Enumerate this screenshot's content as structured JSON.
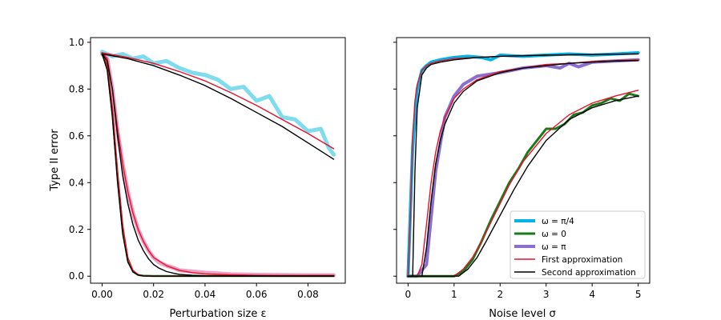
{
  "chart_data": [
    {
      "type": "line",
      "xlabel": "Perturbation size ε",
      "ylabel": "Type II error",
      "xlim": [
        -0.0045,
        0.0945
      ],
      "ylim": [
        -0.03,
        1.02
      ],
      "xticks": [
        0.0,
        0.02,
        0.04,
        0.06,
        0.08
      ],
      "xtick_labels": [
        "0.00",
        "0.02",
        "0.04",
        "0.06",
        "0.08"
      ],
      "yticks": [
        0.0,
        0.2,
        0.4,
        0.6,
        0.8,
        1.0
      ],
      "ytick_labels": [
        "0.0",
        "0.2",
        "0.4",
        "0.6",
        "0.8",
        "1.0"
      ],
      "grid": false,
      "series": [
        {
          "color": "#5ed3e8",
          "width": 5,
          "opacity": 0.8,
          "x": [
            0,
            0.004,
            0.008,
            0.012,
            0.016,
            0.02,
            0.025,
            0.03,
            0.035,
            0.04,
            0.045,
            0.05,
            0.055,
            0.06,
            0.065,
            0.07,
            0.075,
            0.08,
            0.085,
            0.088,
            0.09
          ],
          "y": [
            0.96,
            0.94,
            0.95,
            0.93,
            0.94,
            0.91,
            0.92,
            0.89,
            0.87,
            0.86,
            0.84,
            0.8,
            0.81,
            0.75,
            0.77,
            0.68,
            0.67,
            0.62,
            0.63,
            0.55,
            0.52
          ]
        },
        {
          "color": "#e060a0",
          "width": 5,
          "opacity": 0.6,
          "x": [
            0,
            0.002,
            0.004,
            0.006,
            0.008,
            0.01,
            0.012,
            0.014,
            0.016,
            0.018,
            0.02,
            0.022,
            0.025,
            0.028,
            0.03,
            0.035,
            0.04,
            0.045,
            0.05,
            0.06,
            0.07,
            0.08,
            0.09
          ],
          "y": [
            0.95,
            0.93,
            0.8,
            0.62,
            0.48,
            0.36,
            0.27,
            0.2,
            0.15,
            0.11,
            0.08,
            0.06,
            0.045,
            0.035,
            0.025,
            0.02,
            0.015,
            0.012,
            0.008,
            0.006,
            0.005,
            0.004,
            0.004
          ]
        },
        {
          "color": "#2e8b2e",
          "width": 2.5,
          "opacity": 1,
          "x": [
            0,
            0.002,
            0.004,
            0.006,
            0.008,
            0.01,
            0.012,
            0.014,
            0.016,
            0.02,
            0.03,
            0.05,
            0.07,
            0.09
          ],
          "y": [
            0.95,
            0.9,
            0.7,
            0.43,
            0.2,
            0.07,
            0.02,
            0.005,
            0.002,
            0.001,
            0.001,
            0.001,
            0.001,
            0.001
          ]
        },
        {
          "color": "#e8102a",
          "width": 1.4,
          "opacity": 1,
          "x": [
            0,
            0.01,
            0.02,
            0.03,
            0.04,
            0.05,
            0.06,
            0.07,
            0.08,
            0.09
          ],
          "y": [
            0.955,
            0.935,
            0.91,
            0.875,
            0.835,
            0.785,
            0.73,
            0.67,
            0.61,
            0.545
          ]
        },
        {
          "color": "#e8102a",
          "width": 1.4,
          "opacity": 1,
          "x": [
            0,
            0.002,
            0.004,
            0.006,
            0.008,
            0.01,
            0.012,
            0.014,
            0.016,
            0.018,
            0.02,
            0.025,
            0.03,
            0.035,
            0.04,
            0.05,
            0.06,
            0.07,
            0.08,
            0.09
          ],
          "y": [
            0.955,
            0.93,
            0.8,
            0.63,
            0.48,
            0.36,
            0.27,
            0.2,
            0.15,
            0.11,
            0.08,
            0.045,
            0.025,
            0.015,
            0.01,
            0.006,
            0.004,
            0.003,
            0.003,
            0.003
          ]
        },
        {
          "color": "#e8102a",
          "width": 1.4,
          "opacity": 1,
          "x": [
            0,
            0.002,
            0.004,
            0.006,
            0.008,
            0.01,
            0.012,
            0.014,
            0.016,
            0.02,
            0.03,
            0.05,
            0.09
          ],
          "y": [
            0.955,
            0.9,
            0.72,
            0.45,
            0.22,
            0.08,
            0.025,
            0.007,
            0.002,
            0.001,
            0.001,
            0.001,
            0.001
          ]
        },
        {
          "color": "#000000",
          "width": 1.4,
          "opacity": 1,
          "x": [
            0,
            0.01,
            0.02,
            0.03,
            0.04,
            0.05,
            0.06,
            0.07,
            0.08,
            0.09
          ],
          "y": [
            0.95,
            0.93,
            0.9,
            0.86,
            0.815,
            0.76,
            0.7,
            0.64,
            0.57,
            0.5
          ]
        },
        {
          "color": "#000000",
          "width": 1.4,
          "opacity": 1,
          "x": [
            0,
            0.002,
            0.004,
            0.006,
            0.008,
            0.01,
            0.012,
            0.014,
            0.016,
            0.018,
            0.02,
            0.022,
            0.025,
            0.028,
            0.03,
            0.035,
            0.04,
            0.05,
            0.06,
            0.07,
            0.09
          ],
          "y": [
            0.95,
            0.92,
            0.8,
            0.6,
            0.43,
            0.31,
            0.22,
            0.155,
            0.11,
            0.075,
            0.05,
            0.035,
            0.02,
            0.012,
            0.008,
            0.004,
            0.002,
            0.001,
            0.001,
            0.001,
            0.001
          ]
        },
        {
          "color": "#000000",
          "width": 1.4,
          "opacity": 1,
          "x": [
            0,
            0.002,
            0.004,
            0.006,
            0.008,
            0.01,
            0.012,
            0.014,
            0.016,
            0.02,
            0.03,
            0.09
          ],
          "y": [
            0.95,
            0.88,
            0.68,
            0.4,
            0.18,
            0.06,
            0.018,
            0.005,
            0.001,
            0.0,
            0.0,
            0.0
          ]
        }
      ]
    },
    {
      "type": "line",
      "xlabel": "Noise level σ",
      "ylabel": "",
      "xlim": [
        -0.25,
        5.25
      ],
      "ylim": [
        -0.03,
        1.02
      ],
      "xticks": [
        0,
        1,
        2,
        3,
        4,
        5
      ],
      "xtick_labels": [
        "0",
        "1",
        "2",
        "3",
        "4",
        "5"
      ],
      "yticks": [
        0.0,
        0.2,
        0.4,
        0.6,
        0.8,
        1.0
      ],
      "ytick_labels": [
        "",
        "",
        "",
        "",
        "",
        ""
      ],
      "grid": false,
      "series": [
        {
          "color": "#00b4e6",
          "width": 4,
          "opacity": 1,
          "x": [
            0,
            0.1,
            0.2,
            0.3,
            0.4,
            0.5,
            0.7,
            1.0,
            1.3,
            1.6,
            1.8,
            2.0,
            2.5,
            3.0,
            3.5,
            4.0,
            4.5,
            5.0
          ],
          "y": [
            0.0,
            0.55,
            0.8,
            0.88,
            0.9,
            0.915,
            0.925,
            0.935,
            0.94,
            0.935,
            0.925,
            0.945,
            0.94,
            0.945,
            0.95,
            0.945,
            0.95,
            0.955
          ]
        },
        {
          "color": "#8a6fd0",
          "width": 4,
          "opacity": 1,
          "x": [
            0,
            0.2,
            0.4,
            0.6,
            0.8,
            1.0,
            1.2,
            1.5,
            2.0,
            2.5,
            3.0,
            3.3,
            3.5,
            3.7,
            4.0,
            4.5,
            5.0
          ],
          "y": [
            0.0,
            0.0,
            0.05,
            0.45,
            0.68,
            0.77,
            0.82,
            0.855,
            0.87,
            0.89,
            0.9,
            0.89,
            0.91,
            0.895,
            0.915,
            0.92,
            0.925
          ]
        },
        {
          "color": "#1a7a1a",
          "width": 3,
          "opacity": 1,
          "x": [
            0,
            1.0,
            1.2,
            1.4,
            1.6,
            1.8,
            2.0,
            2.2,
            2.4,
            2.6,
            2.8,
            3.0,
            3.2,
            3.4,
            3.6,
            3.8,
            4.0,
            4.2,
            4.4,
            4.6,
            4.8,
            5.0
          ],
          "y": [
            0.0,
            0.0,
            0.02,
            0.07,
            0.15,
            0.24,
            0.32,
            0.4,
            0.46,
            0.53,
            0.58,
            0.63,
            0.63,
            0.65,
            0.69,
            0.7,
            0.73,
            0.74,
            0.76,
            0.75,
            0.78,
            0.77
          ]
        },
        {
          "color": "#e8102a",
          "width": 1.4,
          "opacity": 1,
          "x": [
            0,
            0.05,
            0.1,
            0.15,
            0.2,
            0.3,
            0.4,
            0.5,
            0.7,
            1.0,
            1.5,
            2.0,
            3.0,
            4.0,
            5.0
          ],
          "y": [
            0.0,
            0.25,
            0.6,
            0.75,
            0.82,
            0.88,
            0.9,
            0.91,
            0.92,
            0.93,
            0.935,
            0.94,
            0.945,
            0.948,
            0.95
          ]
        },
        {
          "color": "#e8102a",
          "width": 1.4,
          "opacity": 1,
          "x": [
            0,
            0.2,
            0.3,
            0.4,
            0.5,
            0.6,
            0.7,
            0.8,
            1.0,
            1.2,
            1.5,
            2.0,
            2.5,
            3.0,
            3.5,
            4.0,
            4.5,
            5.0
          ],
          "y": [
            0.0,
            0.0,
            0.05,
            0.22,
            0.4,
            0.53,
            0.62,
            0.68,
            0.76,
            0.8,
            0.84,
            0.875,
            0.89,
            0.905,
            0.91,
            0.918,
            0.922,
            0.925
          ]
        },
        {
          "color": "#e8102a",
          "width": 1.4,
          "opacity": 1,
          "x": [
            0,
            1.0,
            1.2,
            1.4,
            1.6,
            1.8,
            2.0,
            2.2,
            2.5,
            3.0,
            3.5,
            4.0,
            4.5,
            5.0
          ],
          "y": [
            0.0,
            0.0,
            0.03,
            0.08,
            0.15,
            0.23,
            0.31,
            0.39,
            0.49,
            0.61,
            0.69,
            0.74,
            0.77,
            0.795
          ]
        },
        {
          "color": "#000000",
          "width": 1.4,
          "opacity": 1,
          "x": [
            0,
            0.1,
            0.15,
            0.2,
            0.3,
            0.4,
            0.5,
            0.7,
            1.0,
            1.5,
            2.0,
            3.0,
            4.0,
            5.0
          ],
          "y": [
            0.0,
            0.0,
            0.45,
            0.72,
            0.86,
            0.89,
            0.905,
            0.915,
            0.925,
            0.935,
            0.94,
            0.945,
            0.948,
            0.95
          ]
        },
        {
          "color": "#000000",
          "width": 1.4,
          "opacity": 1,
          "x": [
            0,
            0.3,
            0.4,
            0.5,
            0.6,
            0.7,
            0.8,
            1.0,
            1.2,
            1.5,
            2.0,
            2.5,
            3.0,
            3.5,
            4.0,
            4.5,
            5.0
          ],
          "y": [
            0.0,
            0.0,
            0.12,
            0.32,
            0.48,
            0.58,
            0.65,
            0.74,
            0.79,
            0.835,
            0.87,
            0.89,
            0.9,
            0.91,
            0.915,
            0.92,
            0.922
          ]
        },
        {
          "color": "#000000",
          "width": 1.4,
          "opacity": 1,
          "x": [
            0,
            1.1,
            1.3,
            1.5,
            1.7,
            2.0,
            2.3,
            2.6,
            3.0,
            3.5,
            4.0,
            4.5,
            5.0
          ],
          "y": [
            0.0,
            0.0,
            0.03,
            0.08,
            0.15,
            0.26,
            0.37,
            0.47,
            0.58,
            0.67,
            0.72,
            0.75,
            0.77
          ]
        }
      ],
      "legend": {
        "placement": "lower-right",
        "entries": [
          {
            "label": "ω = π/4",
            "color": "#00b4e6",
            "width": 4
          },
          {
            "label": "ω = 0",
            "color": "#1a7a1a",
            "width": 3
          },
          {
            "label": "ω = π",
            "color": "#8a6fd0",
            "width": 4
          },
          {
            "label": "First approximation",
            "color": "#e8102a",
            "width": 1.6
          },
          {
            "label": "Second approximation",
            "color": "#000000",
            "width": 1.6
          }
        ]
      }
    }
  ]
}
